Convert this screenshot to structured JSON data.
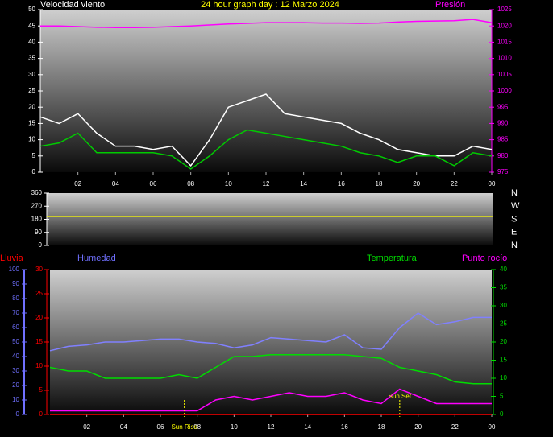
{
  "chart_data": [
    {
      "type": "line",
      "title": "24 hour graph day : 12 Marzo 2024",
      "xlim": [
        0,
        24
      ],
      "xticks": [
        {
          "value": 2,
          "label": "02"
        },
        {
          "value": 4,
          "label": "04"
        },
        {
          "value": 6,
          "label": "06"
        },
        {
          "value": 8,
          "label": "08"
        },
        10,
        12,
        14,
        16,
        18,
        20,
        22,
        {
          "value": 24,
          "label": "00"
        }
      ],
      "x": [
        0,
        1,
        2,
        3,
        4,
        5,
        6,
        7,
        8,
        9,
        10,
        11,
        12,
        13,
        14,
        15,
        16,
        17,
        18,
        19,
        20,
        21,
        22,
        23,
        24
      ],
      "axes": [
        {
          "label": "Velocidad viento",
          "color": "#ffffff",
          "ylim": [
            0,
            50
          ],
          "yticks": [
            0,
            5,
            10,
            15,
            20,
            25,
            30,
            35,
            40,
            45,
            50
          ]
        },
        {
          "label": "Presión",
          "color": "#ff00ff",
          "ylim": [
            975,
            1025
          ],
          "yticks": [
            975,
            980,
            985,
            990,
            995,
            1000,
            1005,
            1010,
            1015,
            1020,
            1025
          ]
        }
      ],
      "series": [
        {
          "color": "#ffffff",
          "axis": 0,
          "values": [
            17,
            15,
            18,
            12,
            8,
            8,
            7,
            8,
            2,
            10,
            20,
            22,
            24,
            18,
            17,
            16,
            15,
            12,
            10,
            7,
            6,
            5,
            5,
            8,
            7
          ]
        },
        {
          "color": "#00cc00",
          "axis": 0,
          "values": [
            8,
            9,
            12,
            6,
            6,
            6,
            6,
            5,
            1,
            5,
            10,
            13,
            12,
            11,
            10,
            9,
            8,
            6,
            5,
            3,
            5,
            5,
            2,
            6,
            5
          ]
        },
        {
          "color": "#ff00ff",
          "axis": 1,
          "values": [
            1020,
            1020,
            1019.8,
            1019.6,
            1019.5,
            1019.5,
            1019.6,
            1019.8,
            1020,
            1020.3,
            1020.6,
            1020.8,
            1021,
            1021,
            1021,
            1020.9,
            1020.9,
            1020.8,
            1020.9,
            1021.2,
            1021.4,
            1021.5,
            1021.6,
            1022,
            1021
          ]
        }
      ]
    },
    {
      "type": "line",
      "xlim": [
        0,
        24
      ],
      "x": [
        0,
        24
      ],
      "axes": [
        {
          "color": "#ffffff",
          "ylim": [
            0,
            360
          ],
          "yticks": [
            0,
            90,
            180,
            270,
            360
          ]
        },
        {
          "color": "#ffffff",
          "ylim": [
            0,
            360
          ],
          "yticks": [
            {
              "value": 360,
              "label": "N"
            },
            {
              "value": 270,
              "label": "W"
            },
            {
              "value": 180,
              "label": "S"
            },
            {
              "value": 90,
              "label": "E"
            },
            {
              "value": 0,
              "label": "N"
            }
          ]
        }
      ],
      "series": [
        {
          "color": "#ffff00",
          "axis": 0,
          "values": [
            200,
            200
          ]
        }
      ]
    },
    {
      "type": "line",
      "xlim": [
        0,
        24
      ],
      "xticks": [
        {
          "value": 2,
          "label": "02"
        },
        {
          "value": 4,
          "label": "04"
        },
        {
          "value": 6,
          "label": "06"
        },
        {
          "value": 8,
          "label": "08"
        },
        10,
        12,
        14,
        16,
        18,
        20,
        22,
        {
          "value": 24,
          "label": "00"
        }
      ],
      "x": [
        0,
        1,
        2,
        3,
        4,
        5,
        6,
        7,
        8,
        9,
        10,
        11,
        12,
        13,
        14,
        15,
        16,
        17,
        18,
        19,
        20,
        21,
        22,
        23,
        24
      ],
      "axes": [
        {
          "label": "Lluvia",
          "color": "#ff0000",
          "ylim": [
            0,
            30
          ],
          "yticks": [
            0,
            5,
            10,
            15,
            20,
            25,
            30
          ]
        },
        {
          "label": "Humedad",
          "color": "#7070ff",
          "ylim": [
            0,
            100
          ],
          "yticks": [
            0,
            10,
            20,
            30,
            40,
            50,
            60,
            70,
            80,
            90,
            100
          ]
        },
        {
          "label": "Temperatura",
          "color": "#00dd00",
          "ylim": [
            0,
            40
          ],
          "yticks": [
            0,
            5,
            10,
            15,
            20,
            25,
            30,
            35,
            40
          ]
        }
      ],
      "series": [
        {
          "color": "#ff0000",
          "axis": 0,
          "values": [
            0,
            0,
            0,
            0,
            0,
            0,
            0,
            0,
            0,
            0,
            0,
            0,
            0,
            0,
            0,
            0,
            0,
            0,
            0,
            0,
            0,
            0,
            0,
            0,
            0
          ]
        },
        {
          "color": "#8080ff",
          "axis": 1,
          "values": [
            44,
            47,
            48,
            50,
            50,
            51,
            52,
            52,
            50,
            49,
            46,
            48,
            53,
            52,
            51,
            50,
            55,
            46,
            45,
            60,
            70,
            62,
            64,
            67,
            67
          ]
        },
        {
          "color": "#00dd00",
          "axis": 2,
          "values": [
            13,
            12,
            12,
            10,
            10,
            10,
            10,
            11,
            10,
            13,
            16,
            16,
            16.5,
            16.5,
            16.5,
            16.5,
            16.5,
            16,
            15.5,
            13,
            12,
            11,
            9,
            8.5,
            8.5
          ]
        },
        {
          "name": "Punto rocío",
          "color": "#ff00ff",
          "axis": 2,
          "values": [
            1,
            1,
            1,
            1,
            1,
            1,
            1,
            1,
            1,
            4,
            5,
            4,
            5,
            6,
            5,
            5,
            6,
            4,
            3,
            7,
            5,
            3,
            3,
            3,
            3
          ]
        }
      ],
      "annotations": [
        {
          "label": "Sun Rise",
          "x": 7.3
        },
        {
          "label": "Sun Set",
          "x": 19.0
        }
      ]
    }
  ]
}
